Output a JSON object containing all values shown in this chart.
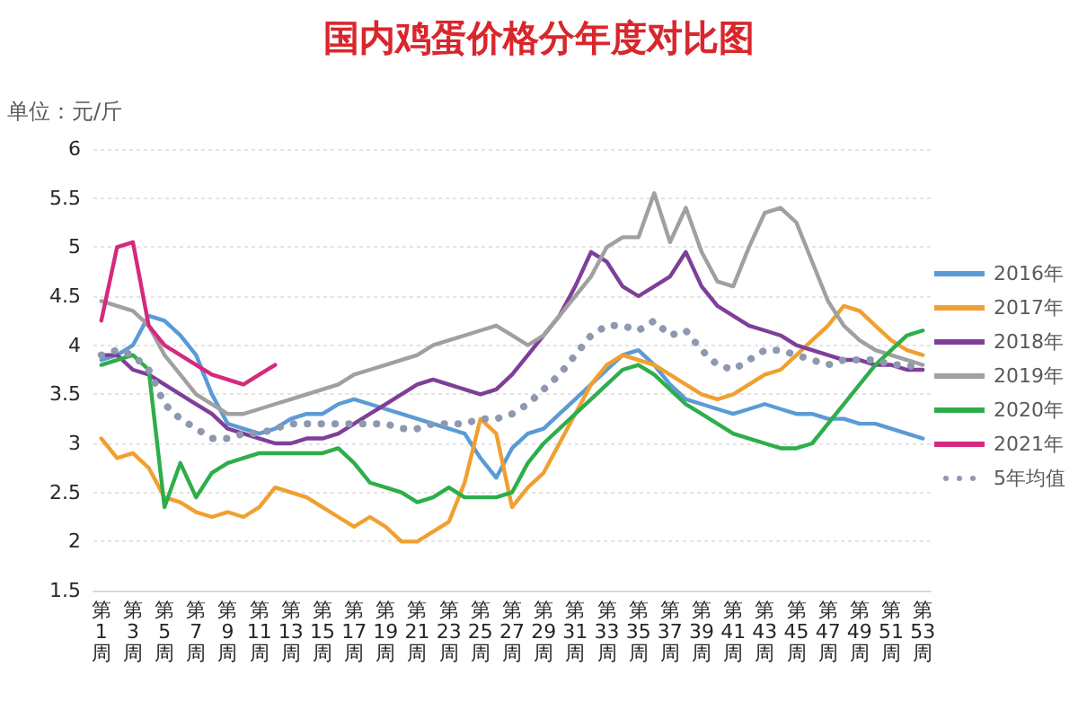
{
  "chart_data": {
    "type": "line",
    "title": "国内鸡蛋价格分年度对比图",
    "ylabel": "单位：元/斤",
    "categories": [
      "第1周",
      null,
      "第3周",
      null,
      "第5周",
      null,
      "第7周",
      null,
      "第9周",
      null,
      "第11周",
      null,
      "第13周",
      null,
      "第15周",
      null,
      "第17周",
      null,
      "第19周",
      null,
      "第21周",
      null,
      "第23周",
      null,
      "第25周",
      null,
      "第27周",
      null,
      "第29周",
      null,
      "第31周",
      null,
      "第33周",
      null,
      "第35周",
      null,
      "第37周",
      null,
      "第39周",
      null,
      "第41周",
      null,
      "第43周",
      null,
      "第45周",
      null,
      "第47周",
      null,
      "第49周",
      null,
      "第51周",
      null,
      "第53周"
    ],
    "series": [
      {
        "name": "2016年",
        "color": "#5b9bd5",
        "values": [
          3.85,
          3.9,
          4.0,
          4.3,
          4.25,
          4.1,
          3.9,
          3.5,
          3.2,
          3.15,
          3.1,
          3.15,
          3.25,
          3.3,
          3.3,
          3.4,
          3.45,
          3.4,
          3.35,
          3.3,
          3.25,
          3.2,
          3.15,
          3.1,
          2.85,
          2.65,
          2.95,
          3.1,
          3.15,
          3.3,
          3.45,
          3.6,
          3.75,
          3.9,
          3.95,
          3.8,
          3.6,
          3.45,
          3.4,
          3.35,
          3.3,
          3.35,
          3.4,
          3.35,
          3.3,
          3.3,
          3.25,
          3.25,
          3.2,
          3.2,
          3.15,
          3.1,
          3.05
        ]
      },
      {
        "name": "2017年",
        "color": "#f0a030",
        "values": [
          3.05,
          2.85,
          2.9,
          2.75,
          2.45,
          2.4,
          2.3,
          2.25,
          2.3,
          2.25,
          2.35,
          2.55,
          2.5,
          2.45,
          2.35,
          2.25,
          2.15,
          2.25,
          2.15,
          2.0,
          2.0,
          2.1,
          2.2,
          2.6,
          3.25,
          3.1,
          2.35,
          2.55,
          2.7,
          3.0,
          3.3,
          3.6,
          3.8,
          3.9,
          3.85,
          3.8,
          3.7,
          3.6,
          3.5,
          3.45,
          3.5,
          3.6,
          3.7,
          3.75,
          3.9,
          4.05,
          4.2,
          4.4,
          4.35,
          4.2,
          4.05,
          3.95,
          3.9
        ]
      },
      {
        "name": "2018年",
        "color": "#7e3f98",
        "values": [
          3.9,
          3.9,
          3.75,
          3.7,
          3.6,
          3.5,
          3.4,
          3.3,
          3.15,
          3.1,
          3.05,
          3.0,
          3.0,
          3.05,
          3.05,
          3.1,
          3.2,
          3.3,
          3.4,
          3.5,
          3.6,
          3.65,
          3.6,
          3.55,
          3.5,
          3.55,
          3.7,
          3.9,
          4.1,
          4.3,
          4.6,
          4.95,
          4.85,
          4.6,
          4.5,
          4.6,
          4.7,
          4.95,
          4.6,
          4.4,
          4.3,
          4.2,
          4.15,
          4.1,
          4.0,
          3.95,
          3.9,
          3.85,
          3.85,
          3.8,
          3.8,
          3.75,
          3.75
        ]
      },
      {
        "name": "2019年",
        "color": "#a0a0a0",
        "values": [
          4.45,
          4.4,
          4.35,
          4.2,
          3.9,
          3.7,
          3.5,
          3.4,
          3.3,
          3.3,
          3.35,
          3.4,
          3.45,
          3.5,
          3.55,
          3.6,
          3.7,
          3.75,
          3.8,
          3.85,
          3.9,
          4.0,
          4.05,
          4.1,
          4.15,
          4.2,
          4.1,
          4.0,
          4.1,
          4.3,
          4.5,
          4.7,
          5.0,
          5.1,
          5.1,
          5.55,
          5.05,
          5.4,
          4.95,
          4.65,
          4.6,
          5.0,
          5.35,
          5.4,
          5.25,
          4.85,
          4.45,
          4.2,
          4.05,
          3.95,
          3.9,
          3.85,
          3.8
        ]
      },
      {
        "name": "2020年",
        "color": "#2eae4a",
        "values": [
          3.8,
          3.85,
          3.9,
          3.75,
          2.35,
          2.8,
          2.45,
          2.7,
          2.8,
          2.85,
          2.9,
          2.9,
          2.9,
          2.9,
          2.9,
          2.95,
          2.8,
          2.6,
          2.55,
          2.5,
          2.4,
          2.45,
          2.55,
          2.45,
          2.45,
          2.45,
          2.5,
          2.8,
          3.0,
          3.15,
          3.3,
          3.45,
          3.6,
          3.75,
          3.8,
          3.7,
          3.55,
          3.4,
          3.3,
          3.2,
          3.1,
          3.05,
          3.0,
          2.95,
          2.95,
          3.0,
          3.2,
          3.4,
          3.6,
          3.8,
          3.95,
          4.1,
          4.15
        ]
      },
      {
        "name": "2021年",
        "color": "#d42a7e",
        "values": [
          4.25,
          5.0,
          5.05,
          4.2,
          4.0,
          3.9,
          3.8,
          3.7,
          3.65,
          3.6,
          3.7,
          3.8,
          null,
          null,
          null,
          null,
          null,
          null,
          null,
          null,
          null,
          null,
          null,
          null,
          null,
          null,
          null,
          null,
          null,
          null,
          null,
          null,
          null,
          null,
          null,
          null,
          null,
          null,
          null,
          null,
          null,
          null,
          null,
          null,
          null,
          null,
          null,
          null,
          null,
          null,
          null,
          null,
          null
        ]
      },
      {
        "name": "5年均值",
        "color": "#8e98b0",
        "line_style": "dotted",
        "values": [
          3.9,
          3.95,
          3.9,
          3.75,
          3.4,
          3.25,
          3.15,
          3.05,
          3.05,
          3.1,
          3.1,
          3.15,
          3.2,
          3.2,
          3.2,
          3.2,
          3.2,
          3.2,
          3.2,
          3.15,
          3.15,
          3.2,
          3.2,
          3.2,
          3.25,
          3.25,
          3.3,
          3.4,
          3.55,
          3.7,
          3.9,
          4.1,
          4.2,
          4.2,
          4.15,
          4.25,
          4.1,
          4.15,
          3.95,
          3.8,
          3.75,
          3.85,
          3.95,
          3.95,
          3.9,
          3.85,
          3.8,
          3.85,
          3.85,
          3.85,
          3.8,
          3.8,
          3.75
        ]
      }
    ],
    "ylim": [
      1.5,
      6
    ],
    "yticks": [
      1.5,
      2,
      2.5,
      3,
      3.5,
      4,
      4.5,
      5,
      5.5,
      6
    ],
    "grid": "y",
    "legend": "right",
    "marker": "none",
    "line_style": "solid"
  }
}
